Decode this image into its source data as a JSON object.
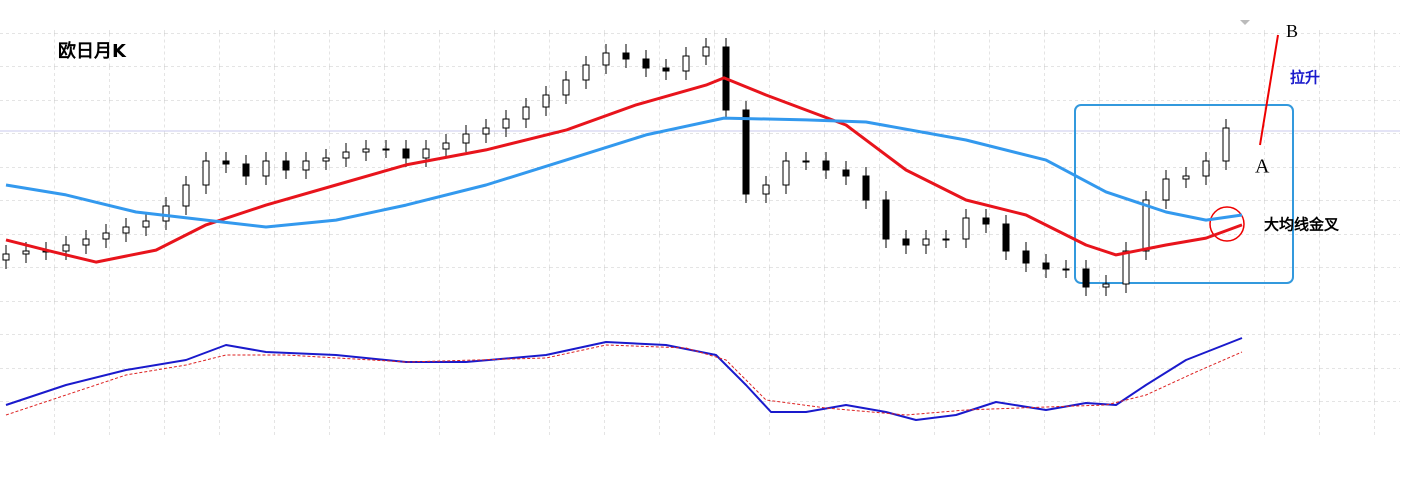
{
  "chart_data": {
    "type": "candlestick",
    "title": "欧日月K",
    "xlim": [
      0,
      62
    ],
    "ylim": [
      0,
      100
    ],
    "up_color": "#ffffff",
    "down_color": "#000000",
    "edge_color": "#000000",
    "x": [
      0,
      1,
      2,
      3,
      4,
      5,
      6,
      7,
      8,
      9,
      10,
      11,
      12,
      13,
      14,
      15,
      16,
      17,
      18,
      19,
      20,
      21,
      22,
      23,
      24,
      25,
      26,
      27,
      28,
      29,
      30,
      31,
      32,
      33,
      34,
      35,
      36,
      37,
      38,
      39,
      40,
      41,
      42,
      43,
      44,
      45,
      46,
      47,
      48,
      49,
      50,
      51,
      52,
      53,
      54,
      55,
      56,
      57,
      58,
      59,
      60,
      61
    ],
    "open": [
      20,
      22,
      23,
      23,
      25,
      27,
      29,
      31,
      33,
      38,
      45,
      53,
      52,
      48,
      53,
      50,
      53,
      54,
      56,
      57,
      57,
      54,
      57,
      59,
      62,
      64,
      67,
      71,
      75,
      80,
      85,
      89,
      87,
      84,
      83,
      88,
      91,
      70,
      42,
      45,
      53,
      53,
      50,
      48,
      40,
      27,
      25,
      27,
      27,
      34,
      32,
      23,
      19,
      17,
      17,
      11,
      12,
      23,
      40,
      47,
      48,
      53
    ],
    "high": [
      25,
      26,
      26,
      28,
      30,
      32,
      34,
      36,
      41,
      48,
      56,
      56,
      55,
      56,
      56,
      56,
      57,
      59,
      60,
      60,
      60,
      60,
      62,
      65,
      67,
      70,
      74,
      78,
      83,
      88,
      92,
      92,
      90,
      87,
      91,
      94,
      94,
      73,
      48,
      56,
      56,
      56,
      53,
      51,
      43,
      30,
      30,
      30,
      37,
      37,
      35,
      26,
      22,
      20,
      20,
      15,
      26,
      43,
      50,
      51,
      56,
      67
    ],
    "low": [
      17,
      19,
      20,
      20,
      22,
      24,
      26,
      28,
      30,
      35,
      42,
      49,
      45,
      45,
      47,
      47,
      50,
      51,
      53,
      54,
      51,
      51,
      54,
      56,
      59,
      61,
      64,
      68,
      72,
      77,
      82,
      84,
      81,
      80,
      80,
      85,
      67,
      39,
      39,
      42,
      50,
      47,
      45,
      37,
      24,
      22,
      22,
      24,
      24,
      29,
      20,
      16,
      14,
      14,
      8,
      8,
      9,
      20,
      37,
      44,
      45,
      50
    ],
    "close": [
      22,
      23,
      23,
      25,
      27,
      29,
      31,
      33,
      38,
      45,
      53,
      52,
      48,
      53,
      50,
      53,
      54,
      56,
      57,
      57,
      54,
      57,
      59,
      62,
      64,
      67,
      71,
      75,
      80,
      85,
      89,
      87,
      84,
      83,
      88,
      91,
      70,
      42,
      45,
      53,
      53,
      50,
      48,
      40,
      27,
      25,
      27,
      27,
      34,
      32,
      23,
      19,
      17,
      17,
      11,
      12,
      23,
      40,
      47,
      48,
      53,
      64
    ],
    "lines": [
      {
        "color": "#e8141c",
        "x": [
          0,
          2,
          4.5,
          7.5,
          10,
          13,
          16.5,
          20,
          24,
          28,
          31.5,
          35,
          35.9,
          38,
          42,
          45,
          48,
          51,
          54,
          55.5,
          58,
          60,
          61.8
        ],
        "values": [
          26.7,
          23.3,
          19.3,
          23.3,
          31.7,
          38.3,
          45,
          51.7,
          56.7,
          63.3,
          71.7,
          78.3,
          80.7,
          75,
          65,
          50,
          40,
          35,
          25,
          21.7,
          25,
          27.3,
          31.7
        ]
      },
      {
        "color": "#3399ee",
        "x": [
          0,
          3,
          6.5,
          10,
          13,
          16.5,
          20,
          24,
          28,
          32,
          35.9,
          40,
          43,
          48,
          52,
          55,
          58,
          60,
          61.8
        ],
        "values": [
          45,
          41.7,
          36,
          33.3,
          31,
          33.3,
          38.3,
          45,
          53.3,
          61.7,
          67.3,
          66.7,
          66,
          60,
          53.3,
          42.7,
          36,
          33.3,
          35
        ]
      }
    ],
    "indicator": {
      "ylim": [
        0,
        100
      ],
      "lines": [
        {
          "color": "#1a1acc",
          "dash": false,
          "x": [
            0,
            3,
            6,
            9,
            11,
            13,
            16.5,
            20,
            23,
            27,
            30,
            33,
            35.5,
            37,
            38.25,
            40,
            42,
            44,
            45.5,
            47.5,
            49.5,
            52,
            54,
            55.5,
            57,
            59,
            61.8
          ],
          "values": [
            29.2,
            45.8,
            58.3,
            66.7,
            79.2,
            73.3,
            70.8,
            65,
            65,
            70.8,
            81.7,
            79.2,
            70.8,
            45.8,
            23.3,
            23.3,
            29.2,
            23.3,
            16.7,
            20.8,
            31.7,
            25,
            30.8,
            29.2,
            45.8,
            66.7,
            85
          ]
        },
        {
          "color": "#dd2222",
          "dash": true,
          "x": [
            0,
            3,
            6,
            9,
            11,
            14,
            20,
            27,
            30,
            34,
            36,
            38,
            41,
            45,
            48,
            52,
            55,
            57,
            59.5,
            61.8
          ],
          "values": [
            20.8,
            37.5,
            54.2,
            62.5,
            70.8,
            70.8,
            65,
            68.3,
            79.2,
            76.7,
            66.7,
            33.3,
            26.7,
            20.8,
            25,
            27.5,
            29.2,
            37.5,
            56.7,
            73.3
          ]
        }
      ]
    },
    "annotations": {
      "b": "B",
      "lift": "拉升",
      "a": "A",
      "cross": "大均线金叉"
    }
  }
}
